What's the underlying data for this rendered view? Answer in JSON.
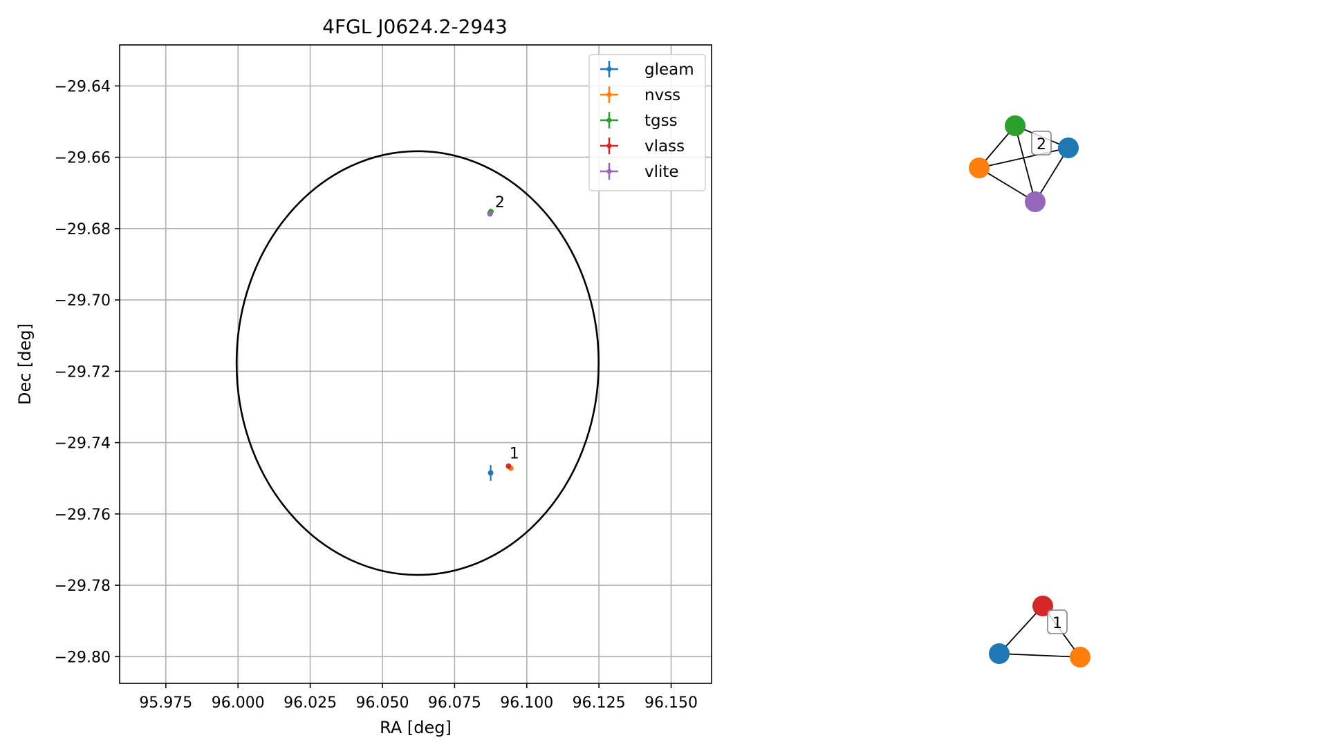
{
  "chart_data": {
    "type": "scatter",
    "title": "4FGL J0624.2-2943",
    "xlabel": "RA [deg]",
    "ylabel": "Dec [deg]",
    "xlim": [
      95.959,
      96.164
    ],
    "ylim": [
      -29.8075,
      -29.6285
    ],
    "xticks": [
      95.975,
      96.0,
      96.025,
      96.05,
      96.075,
      96.1,
      96.125,
      96.15
    ],
    "xtick_labels": [
      "95.975",
      "96.000",
      "96.025",
      "96.050",
      "96.075",
      "96.100",
      "96.125",
      "96.150"
    ],
    "yticks": [
      -29.64,
      -29.66,
      -29.68,
      -29.7,
      -29.72,
      -29.74,
      -29.76,
      -29.78,
      -29.8
    ],
    "ytick_labels": [
      "−29.64",
      "−29.66",
      "−29.68",
      "−29.70",
      "−29.72",
      "−29.74",
      "−29.76",
      "−29.78",
      "−29.80"
    ],
    "grid": true,
    "legend_position": "top-right",
    "ellipse": {
      "center": [
        96.0622,
        -29.7177
      ],
      "semi_axis_ra": 0.0627,
      "semi_axis_dec": 0.0594,
      "color": "#000000"
    },
    "series": [
      {
        "name": "gleam",
        "color": "#1f77b4",
        "points": [
          {
            "x": 96.0875,
            "y": -29.7485,
            "xerr": 0.0008,
            "yerr": 0.0022
          }
        ]
      },
      {
        "name": "nvss",
        "color": "#ff7f0e",
        "points": [
          {
            "x": 96.0945,
            "y": -29.7472,
            "xerr": 0.0003,
            "yerr": 0.0003
          },
          {
            "x": 96.0872,
            "y": -29.6757,
            "xerr": 0.0003,
            "yerr": 0.0003
          }
        ]
      },
      {
        "name": "tgss",
        "color": "#2ca02c",
        "points": [
          {
            "x": 96.0876,
            "y": -29.6752,
            "xerr": 0.0004,
            "yerr": 0.0004
          }
        ]
      },
      {
        "name": "vlass",
        "color": "#d62728",
        "points": [
          {
            "x": 96.0937,
            "y": -29.7466,
            "xerr": 0.0001,
            "yerr": 0.0001
          }
        ]
      },
      {
        "name": "vlite",
        "color": "#9467bd",
        "points": [
          {
            "x": 96.0873,
            "y": -29.6759,
            "xerr": 0.0004,
            "yerr": 0.0004
          }
        ]
      }
    ],
    "annotations": [
      {
        "text": "2",
        "x": 96.089,
        "y": -29.674
      },
      {
        "text": "1",
        "x": 96.094,
        "y": -29.7444
      }
    ],
    "graphs": [
      {
        "label": "2",
        "nodes": [
          {
            "name": "tgss",
            "color": "#2ca02c"
          },
          {
            "name": "gleam",
            "color": "#1f77b4"
          },
          {
            "name": "nvss",
            "color": "#ff7f0e"
          },
          {
            "name": "vlite",
            "color": "#9467bd"
          }
        ],
        "edges": [
          [
            "tgss",
            "gleam"
          ],
          [
            "tgss",
            "nvss"
          ],
          [
            "tgss",
            "vlite"
          ],
          [
            "nvss",
            "gleam"
          ],
          [
            "nvss",
            "vlite"
          ],
          [
            "vlite",
            "gleam"
          ]
        ]
      },
      {
        "label": "1",
        "nodes": [
          {
            "name": "vlass",
            "color": "#d62728"
          },
          {
            "name": "gleam",
            "color": "#1f77b4"
          },
          {
            "name": "nvss",
            "color": "#ff7f0e"
          }
        ],
        "edges": [
          [
            "vlass",
            "gleam"
          ],
          [
            "vlass",
            "nvss"
          ],
          [
            "gleam",
            "nvss"
          ]
        ]
      }
    ]
  }
}
